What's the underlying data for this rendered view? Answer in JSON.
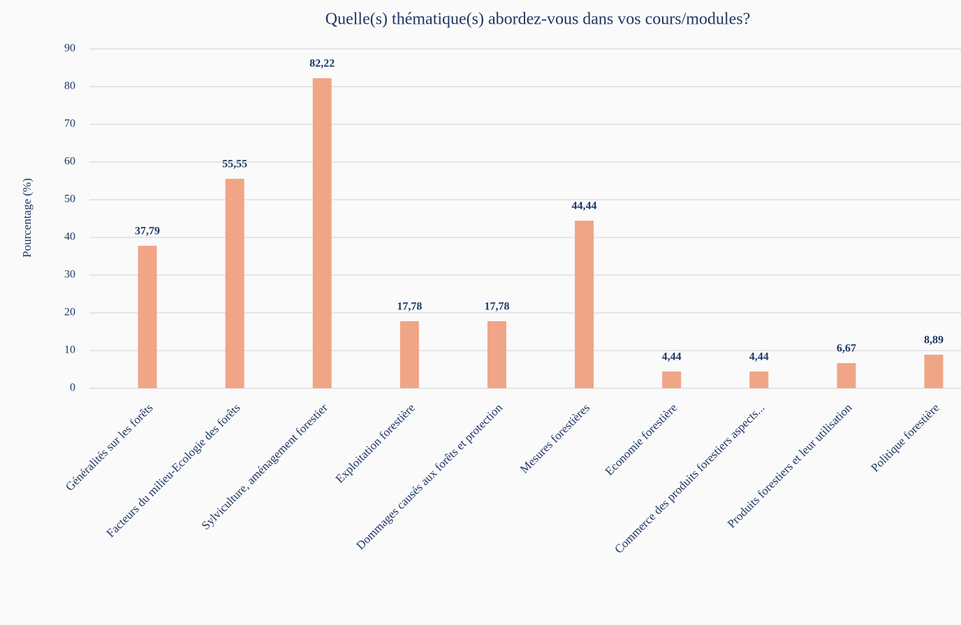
{
  "chart_data": {
    "type": "bar",
    "title": "Quelle(s) thématique(s) abordez-vous dans vos cours/modules?",
    "y_label": "Pourcentage (%)",
    "categories": [
      "Généralités sur les forêts",
      "Facteurs du milieu-Ecologie des forêts",
      "Sylviculture, aménagement forestier",
      "Exploitation forestière",
      "Dommages causés aux forêts et protection",
      "Mesures forestières",
      "Economie forestière",
      "Commerce des produits forestiers aspects...",
      "Produits forestiers et leur utilisation",
      "Politique forestière"
    ],
    "values": [
      37.79,
      55.55,
      82.22,
      17.78,
      17.78,
      44.44,
      4.44,
      4.44,
      6.67,
      8.89
    ],
    "value_labels": [
      "37,79",
      "55,55",
      "82,22",
      "17,78",
      "17,78",
      "44,44",
      "4,44",
      "4,44",
      "6,67",
      "8,89"
    ],
    "color": "#f0a586",
    "ylim": [
      0,
      90
    ],
    "yticks": [
      0,
      10,
      20,
      30,
      40,
      50,
      60,
      70,
      80,
      90
    ],
    "grid": true
  }
}
